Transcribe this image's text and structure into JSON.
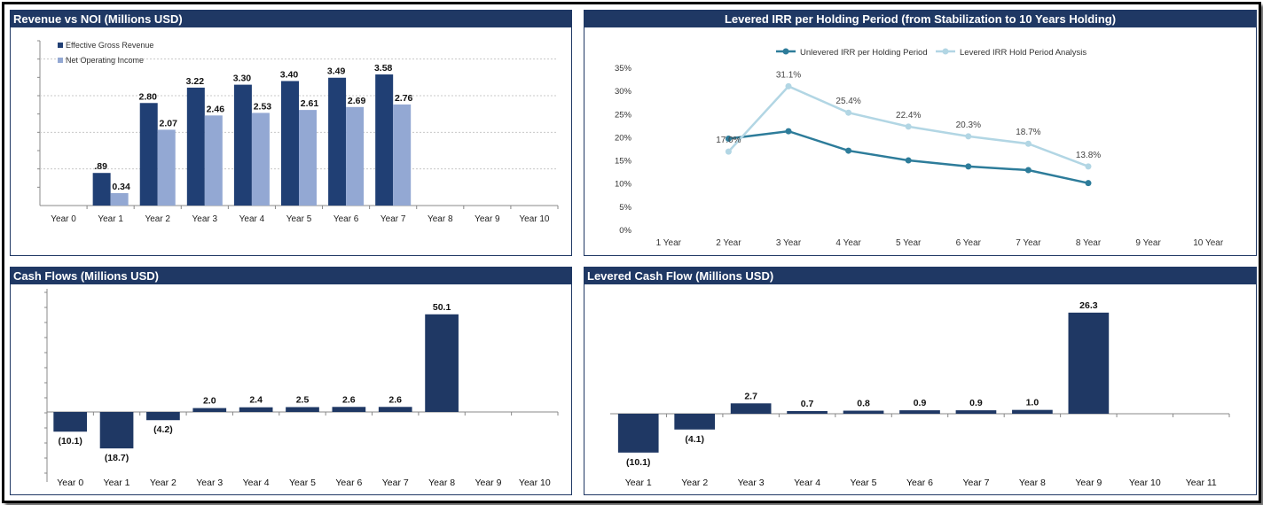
{
  "colors": {
    "header": "#1f3864",
    "dark_bar": "#203f74",
    "light_bar": "#93a8d3",
    "line_dark": "#2d7c9a",
    "line_light": "#b2d6e4"
  },
  "panels": {
    "revenue_noi": {
      "title": "Revenue vs NOI (Millions USD)"
    },
    "irr": {
      "title": "Levered IRR per Holding Period (from Stabilization to 10 Years Holding)"
    },
    "cash_flows": {
      "title": "Cash Flows (Millions USD)"
    },
    "levered_cf": {
      "title": "Levered Cash Flow (Millions USD)"
    }
  },
  "chart_data": [
    {
      "type": "bar",
      "title": "Revenue vs NOI (Millions USD)",
      "categories": [
        "Year 0",
        "Year 1",
        "Year 2",
        "Year 3",
        "Year 4",
        "Year 5",
        "Year 6",
        "Year 7",
        "Year 8",
        "Year 9",
        "Year 10"
      ],
      "series": [
        {
          "name": "Effective Gross Revenue",
          "values": [
            null,
            0.89,
            2.8,
            3.22,
            3.3,
            3.4,
            3.49,
            3.58,
            null,
            null,
            null
          ],
          "labels": [
            "",
            ".89",
            "2.80",
            "3.22",
            "3.30",
            "3.40",
            "3.49",
            "3.58",
            "",
            "",
            ""
          ]
        },
        {
          "name": "Net Operating Income",
          "values": [
            null,
            0.34,
            2.07,
            2.46,
            2.53,
            2.61,
            2.69,
            2.76,
            null,
            null,
            null
          ],
          "labels": [
            "",
            "0.34",
            "2.07",
            "2.46",
            "2.53",
            "2.61",
            "2.69",
            "2.76",
            "",
            "",
            ""
          ]
        }
      ],
      "ylim": [
        0,
        4.5
      ],
      "grid": true,
      "legend": "top-left"
    },
    {
      "type": "line",
      "title": "Levered IRR per Holding Period (from Stabilization to 10 Years Holding)",
      "categories": [
        "1 Year",
        "2 Year",
        "3 Year",
        "4 Year",
        "5 Year",
        "6 Year",
        "7 Year",
        "8 Year",
        "9 Year",
        "10 Year"
      ],
      "yticks": [
        "0%",
        "5%",
        "10%",
        "15%",
        "20%",
        "25%",
        "30%",
        "35%"
      ],
      "ylim": [
        0,
        35
      ],
      "series": [
        {
          "name": "Unlevered IRR per Holding Period",
          "values": [
            null,
            19.8,
            21.4,
            17.2,
            15.1,
            13.8,
            13.0,
            10.2,
            null,
            null
          ],
          "labels": []
        },
        {
          "name": "Levered IRR Hold Period Analysis",
          "values": [
            null,
            17.0,
            31.1,
            25.4,
            22.4,
            20.3,
            18.7,
            13.8,
            null,
            null
          ],
          "labels": [
            "",
            "17.0%",
            "31.1%",
            "25.4%",
            "22.4%",
            "20.3%",
            "18.7%",
            "13.8%",
            "",
            ""
          ]
        }
      ],
      "grid": false,
      "legend": "top-center"
    },
    {
      "type": "bar",
      "title": "Cash Flows (Millions USD)",
      "categories": [
        "Year 0",
        "Year 1",
        "Year 2",
        "Year 3",
        "Year 4",
        "Year 5",
        "Year 6",
        "Year 7",
        "Year 8",
        "Year 9",
        "Year 10"
      ],
      "values": [
        -10.1,
        -18.7,
        -4.2,
        2.0,
        2.4,
        2.5,
        2.6,
        2.6,
        50.1,
        null,
        null
      ],
      "labels": [
        "(10.1)",
        "(18.7)",
        "(4.2)",
        "2.0",
        "2.4",
        "2.5",
        "2.6",
        "2.6",
        "50.1",
        "",
        ""
      ],
      "ylim": [
        -30,
        60
      ]
    },
    {
      "type": "bar",
      "title": "Levered Cash Flow (Millions USD)",
      "categories": [
        "Year 1",
        "Year 2",
        "Year 3",
        "Year 4",
        "Year 5",
        "Year 6",
        "Year 7",
        "Year 8",
        "Year 9",
        "Year 10",
        "Year 11"
      ],
      "values": [
        -10.1,
        -4.1,
        2.7,
        0.7,
        0.8,
        0.9,
        0.9,
        1.0,
        26.3,
        null,
        null
      ],
      "labels": [
        "(10.1)",
        "(4.1)",
        "2.7",
        "0.7",
        "0.8",
        "0.9",
        "0.9",
        "1.0",
        "26.3",
        "",
        ""
      ],
      "ylim": [
        -15,
        32
      ]
    }
  ]
}
